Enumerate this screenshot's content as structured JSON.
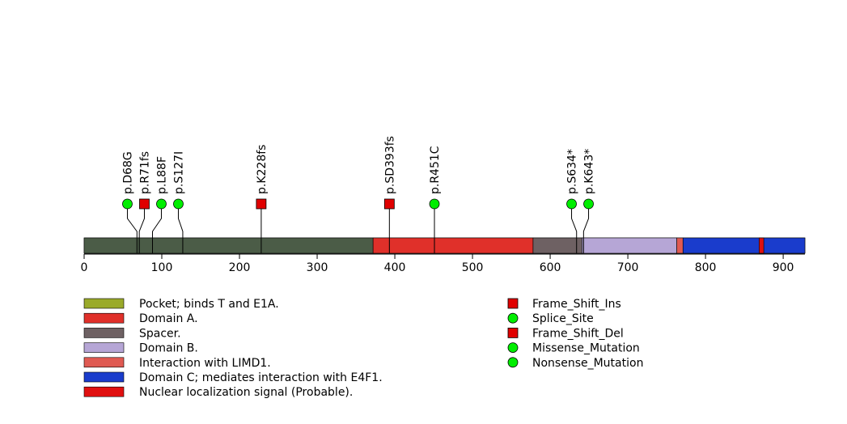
{
  "chart_data": {
    "type": "lollipop",
    "protein_length": 928,
    "xlim": [
      0,
      928
    ],
    "ticks": [
      0,
      100,
      200,
      300,
      400,
      500,
      600,
      700,
      800,
      900
    ],
    "tick_labels": [
      "0",
      "100",
      "200",
      "300",
      "400",
      "500",
      "600",
      "700",
      "800",
      "900"
    ],
    "backbone_color": "#4b5c47",
    "domains": [
      {
        "label": "Pocket; binds T and E1A.",
        "start": 0,
        "end": 372,
        "color": "#4b5c47",
        "legend_color": "#9aaa2a"
      },
      {
        "label": "Domain A.",
        "start": 372,
        "end": 578,
        "color": "#e0302a",
        "legend_color": "#e0302a"
      },
      {
        "label": "Spacer.",
        "start": 578,
        "end": 641,
        "color": "#6e6163",
        "legend_color": "#6e6163"
      },
      {
        "label": "Domain B.",
        "start": 641,
        "end": 763,
        "color": "#b6a6d6",
        "legend_color": "#b6a6d6"
      },
      {
        "label": "Interaction with LIMD1.",
        "start": 763,
        "end": 771,
        "color": "#e05a52",
        "legend_color": "#e05a52"
      },
      {
        "label": "Domain C; mediates interaction with E4F1.",
        "start": 771,
        "end": 928,
        "color": "#1a3ccc",
        "legend_color": "#1a3ccc"
      },
      {
        "label": "Nuclear localization signal (Probable).",
        "start": 869,
        "end": 875,
        "color": "#e01010",
        "legend_color": "#e01010"
      }
    ],
    "mutations": [
      {
        "label": "p.D68G",
        "position": 68,
        "type": "Missense_Mutation"
      },
      {
        "label": "p.R71fs",
        "position": 71,
        "type": "Frame_Shift_Del"
      },
      {
        "label": "p.L88F",
        "position": 88,
        "type": "Missense_Mutation"
      },
      {
        "label": "p.S127I",
        "position": 127,
        "type": "Missense_Mutation"
      },
      {
        "label": "p.K228fs",
        "position": 228,
        "type": "Frame_Shift_Del"
      },
      {
        "label": "p.SD393fs",
        "position": 393,
        "type": "Frame_Shift_Del"
      },
      {
        "label": "p.R451C",
        "position": 451,
        "type": "Missense_Mutation"
      },
      {
        "label": "p.S634*",
        "position": 634,
        "type": "Nonsense_Mutation"
      },
      {
        "label": "p.K643*",
        "position": 643,
        "type": "Nonsense_Mutation"
      }
    ],
    "mutation_types": [
      {
        "label": "Frame_Shift_Ins",
        "shape": "square",
        "color": "#e00000"
      },
      {
        "label": "Splice_Site",
        "shape": "circle",
        "color": "#00ee00"
      },
      {
        "label": "Frame_Shift_Del",
        "shape": "square",
        "color": "#e00000"
      },
      {
        "label": "Missense_Mutation",
        "shape": "circle",
        "color": "#00ee00"
      },
      {
        "label": "Nonsense_Mutation",
        "shape": "circle",
        "color": "#00ee00"
      }
    ]
  }
}
